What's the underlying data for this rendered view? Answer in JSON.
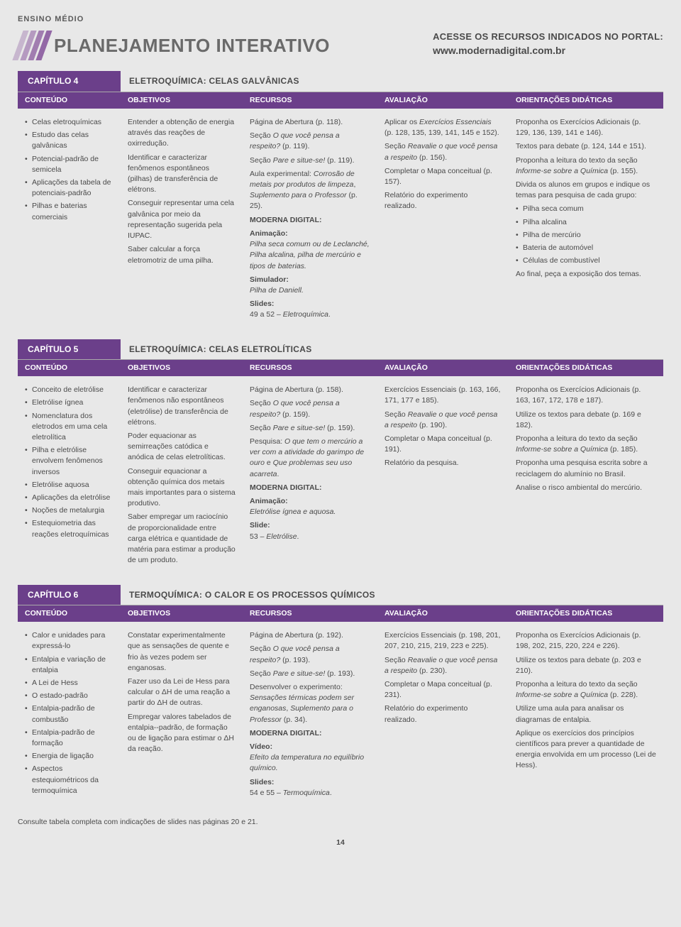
{
  "colors": {
    "purple": "#6b3f8a",
    "purpleLight": "#8a5a9e",
    "text": "#4a4a4a",
    "bg": "#e8e8e8"
  },
  "topLabel": "ENSINO MÉDIO",
  "banner": "PLANEJAMENTO INTERATIVO",
  "portal": {
    "line1": "ACESSE OS RECURSOS INDICADOS NO PORTAL:",
    "line2": "www.modernadigital.com.br"
  },
  "columnHeaders": {
    "a": "CONTEÚDO",
    "b": "OBJETIVOS",
    "c": "RECURSOS",
    "d": "AVALIAÇÃO",
    "e": "ORIENTAÇÕES DIDÁTICAS"
  },
  "chapters": [
    {
      "label": "CAPÍTULO 4",
      "title": "ELETROQUÍMICA: CELAS GALVÂNICAS",
      "conteudo": [
        "Celas eletroquímicas",
        "Estudo das celas galvânicas",
        "Potencial-padrão de semicela",
        "Aplicações da tabela de potenciais-padrão",
        "Pilhas e baterias comerciais"
      ],
      "objetivos": [
        "Entender a obtenção de energia através das reações de oxirredução.",
        "Identificar e caracterizar fenômenos espontâneos (pilhas) de transferência de elétrons.",
        "Conseguir representar uma cela galvânica por meio da representação sugerida pela IUPAC.",
        "Saber calcular a força eletromotriz de uma pilha."
      ],
      "recursos": [
        {
          "t": "Página de Abertura (p. 118)."
        },
        {
          "t": "Seção <span class='it'>O que você pensa a respeito?</span> (p. 119)."
        },
        {
          "t": "Seção <span class='it'>Pare e situe-se!</span> (p. 119)."
        },
        {
          "t": "Aula experimental: <span class='it'>Corrosão de metais por produtos de limpeza</span>, <span class='it'>Suplemento para o Professor</span> (p. 25)."
        },
        {
          "t": "<span class='b'>MODERNA DIGITAL:</span>"
        },
        {
          "t": "<span class='b'>Animação:</span><br><span class='it'>Pilha seca comum ou de Leclanché, Pilha alcalina, pilha de mercúrio e tipos de baterias.</span>"
        },
        {
          "t": "<span class='b'>Simulador:</span><br><span class='it'>Pilha de Daniell.</span>"
        },
        {
          "t": "<span class='b'>Slides:</span><br>49 a 52 – <span class='it'>Eletroquímica</span>."
        }
      ],
      "avaliacao": [
        {
          "t": "Aplicar os <span class='it'>Exercícios Essenciais</span> (p. 128, 135, 139, 141, 145 e 152)."
        },
        {
          "t": "Seção <span class='it'>Reavalie o que você pensa a respeito</span> (p. 156)."
        },
        {
          "t": "Completar o Mapa conceitual (p. 157)."
        },
        {
          "t": "Relatório do experimento realizado."
        }
      ],
      "orientacoes": [
        {
          "t": "Proponha os Exercícios Adicionais (p. 129, 136, 139, 141 e 146)."
        },
        {
          "t": "Textos para debate (p. 124, 144 e 151)."
        },
        {
          "t": "Proponha a leitura do texto da seção <span class='it'>Informe-se sobre a Química</span> (p. 155)."
        },
        {
          "t": "Divida os alunos em grupos e indique os temas para pesquisa de cada grupo:"
        },
        {
          "list": [
            "Pilha seca comum",
            "Pilha alcalina",
            "Pilha de mercúrio",
            "Bateria de automóvel",
            "Células de combustível"
          ]
        },
        {
          "t": "Ao final, peça a exposição dos temas."
        }
      ]
    },
    {
      "label": "CAPÍTULO 5",
      "title": "ELETROQUÍMICA: CELAS ELETROLÍTICAS",
      "conteudo": [
        "Conceito de eletrólise",
        "Eletrólise ígnea",
        "Nomenclatura dos eletrodos em uma cela eletrolítica",
        "Pilha e eletrólise envolvem fenômenos inversos",
        "Eletrólise aquosa",
        "Aplicações da eletrólise",
        "Noções de metalurgia",
        "Estequiometria das reações eletroquímicas"
      ],
      "objetivos": [
        "Identificar e caracterizar fenômenos não espontâneos (eletrólise) de transferência de elétrons.",
        "Poder equacionar as semirreações catódica e anódica de celas eletrolíticas.",
        "Conseguir equacionar a obtenção química dos metais mais importantes para o sistema produtivo.",
        "Saber empregar um raciocínio de proporcionalidade entre carga elétrica e quantidade de matéria para estimar a produção de um produto."
      ],
      "recursos": [
        {
          "t": "Página de Abertura (p. 158)."
        },
        {
          "t": "Seção <span class='it'>O que você pensa a respeito?</span> (p. 159)."
        },
        {
          "t": "Seção <span class='it'>Pare e situe-se!</span> (p. 159)."
        },
        {
          "t": "Pesquisa: <span class='it'>O que tem o mercúrio a ver com a atividade do garimpo de ouro</span> e <span class='it'>Que problemas seu uso acarreta</span>."
        },
        {
          "t": "<span class='b'>MODERNA DIGITAL:</span>"
        },
        {
          "t": "<span class='b'>Animação:</span><br><span class='it'>Eletrólise ígnea e aquosa.</span>"
        },
        {
          "t": "<span class='b'>Slide:</span><br>53 – <span class='it'>Eletrólise</span>."
        }
      ],
      "avaliacao": [
        {
          "t": "Exercícios Essenciais (p. 163, 166, 171, 177 e 185)."
        },
        {
          "t": "Seção <span class='it'>Reavalie o que você pensa a respeito</span> (p. 190)."
        },
        {
          "t": "Completar o Mapa conceitual (p. 191)."
        },
        {
          "t": "Relatório da pesquisa."
        }
      ],
      "orientacoes": [
        {
          "t": "Proponha os Exercícios Adicionais (p. 163, 167, 172, 178 e 187)."
        },
        {
          "t": "Utilize os textos para debate (p. 169 e 182)."
        },
        {
          "t": "Proponha a leitura do texto da seção <span class='it'>Informe-se sobre a Química</span> (p. 185)."
        },
        {
          "t": "Proponha uma pesquisa escrita sobre a reciclagem do alumínio no Brasil."
        },
        {
          "t": "Analise o risco ambiental do mercúrio."
        }
      ]
    },
    {
      "label": "CAPÍTULO 6",
      "title": "TERMOQUÍMICA: O CALOR E OS PROCESSOS QUÍMICOS",
      "conteudo": [
        "Calor e unidades para expressá-lo",
        "Entalpia e variação de entalpia",
        "A Lei de Hess",
        "O estado-padrão",
        "Entalpia-padrão de combustão",
        "Entalpia-padrão de formação",
        "Energia de ligação",
        "Aspectos estequiométricos da termoquímica"
      ],
      "objetivos": [
        "Constatar experimentalmente que as sensações de quente e frio às vezes podem ser enganosas.",
        "Fazer uso da Lei de Hess para calcular o ΔH de uma reação a partir do ΔH de outras.",
        "Empregar valores tabelados de entalpia--padrão, de formação ou de ligação para estimar o ΔH da reação."
      ],
      "recursos": [
        {
          "t": "Página de Abertura (p. 192)."
        },
        {
          "t": "Seção <span class='it'>O que você pensa a respeito?</span> (p. 193)."
        },
        {
          "t": "Seção <span class='it'>Pare e situe-se!</span> (p. 193)."
        },
        {
          "t": "Desenvolver o experimento: <span class='it'>Sensações térmicas podem ser enganosas</span>, <span class='it'>Suplemento para o Professor</span> (p. 34)."
        },
        {
          "t": "<span class='b'>MODERNA DIGITAL:</span>"
        },
        {
          "t": "<span class='b'>Vídeo:</span><br><span class='it'>Efeito da temperatura no equilíbrio químico.</span>"
        },
        {
          "t": "<span class='b'>Slides:</span><br>54 e 55 – <span class='it'>Termoquímica</span>."
        }
      ],
      "avaliacao": [
        {
          "t": "Exercícios Essenciais (p. 198, 201, 207, 210, 215, 219, 223 e 225)."
        },
        {
          "t": "Seção <span class='it'>Reavalie o que você pensa a respeito</span> (p. 230)."
        },
        {
          "t": "Completar o Mapa conceitual (p. 231)."
        },
        {
          "t": "Relatório do experimento realizado."
        }
      ],
      "orientacoes": [
        {
          "t": "Proponha os Exercícios Adicionais (p. 198, 202, 215, 220, 224 e 226)."
        },
        {
          "t": "Utilize os textos para debate (p. 203 e 210)."
        },
        {
          "t": "Proponha a leitura do texto da seção <span class='it'>Informe-se sobre a Química</span> (p. 228)."
        },
        {
          "t": "Utilize uma aula para analisar os diagramas de entalpia."
        },
        {
          "t": "Aplique os exercícios dos princípios científicos para prever a quantidade de energia envolvida em um processo (Lei de Hess)."
        }
      ]
    }
  ],
  "footerNote": "Consulte tabela completa com indicações de slides nas páginas 20 e 21.",
  "pageNumber": "14"
}
